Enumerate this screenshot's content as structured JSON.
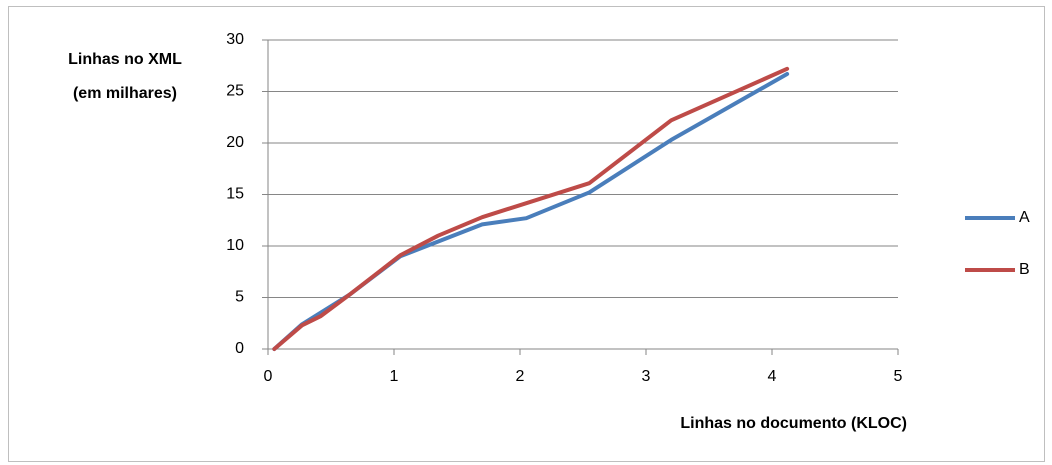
{
  "chart_data": {
    "type": "line",
    "ylabel": [
      "Linhas no XML",
      "(em milhares)"
    ],
    "xlabel": "Linhas no documento (KLOC)",
    "series": [
      {
        "name": "A",
        "color": "#4a7ebb",
        "x": [
          0.05,
          0.27,
          0.65,
          1.05,
          1.7,
          2.05,
          2.55,
          3.2,
          4.12
        ],
        "values": [
          0,
          2.4,
          5.3,
          9.0,
          12.1,
          12.7,
          15.2,
          20.3,
          26.7
        ]
      },
      {
        "name": "B",
        "color": "#be4b48",
        "x": [
          0.05,
          0.27,
          0.42,
          0.65,
          1.05,
          1.35,
          1.7,
          2.55,
          3.2,
          4.12
        ],
        "values": [
          0,
          2.3,
          3.2,
          5.3,
          9.1,
          11.0,
          12.8,
          16.1,
          22.2,
          27.2
        ]
      }
    ],
    "xlim": [
      0,
      5
    ],
    "xticks": [
      0,
      1,
      2,
      3,
      4,
      5
    ],
    "ylim": [
      0,
      30
    ],
    "yticks": [
      0,
      5,
      10,
      15,
      20,
      25,
      30
    ],
    "grid": true,
    "legend": "right"
  }
}
